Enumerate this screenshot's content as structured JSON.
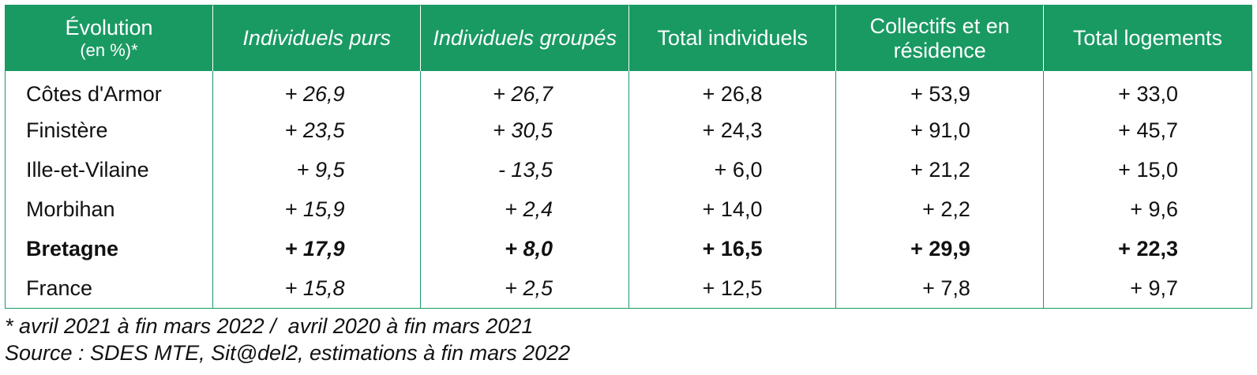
{
  "colors": {
    "header_background": "#1a9a63",
    "header_text": "#ffffff",
    "grid_lines": "#1a9a63"
  },
  "chart_data": {
    "type": "table",
    "columns": [
      {
        "label": "Évolution",
        "sublabel": "(en %)*"
      },
      {
        "label": "Individuels purs"
      },
      {
        "label": "Individuels groupés"
      },
      {
        "label": "Total individuels"
      },
      {
        "label": "Collectifs et en résidence"
      },
      {
        "label": "Total logements"
      }
    ],
    "rows": [
      {
        "label": "Côtes d'Armor",
        "values": [
          "+ 26,9",
          "+ 26,7",
          "+ 26,8",
          "+ 53,9",
          "+ 33,0"
        ]
      },
      {
        "label": "Finistère",
        "values": [
          "+ 23,5",
          "+ 30,5",
          "+ 24,3",
          "+ 91,0",
          "+ 45,7"
        ]
      },
      {
        "label": "Ille-et-Vilaine",
        "values": [
          "+ 9,5",
          "- 13,5",
          "+ 6,0",
          "+ 21,2",
          "+ 15,0"
        ]
      },
      {
        "label": "Morbihan",
        "values": [
          "+ 15,9",
          "+ 2,4",
          "+ 14,0",
          "+ 2,2",
          "+ 9,6"
        ]
      },
      {
        "label": "Bretagne",
        "values": [
          "+ 17,9",
          "+ 8,0",
          "+ 16,5",
          "+ 29,9",
          "+ 22,3"
        ]
      },
      {
        "label": "France",
        "values": [
          "+ 15,8",
          "+ 2,5",
          "+ 12,5",
          "+ 7,8",
          "+ 9,7"
        ]
      }
    ]
  },
  "notes": {
    "period": "* avril 2021 à fin mars 2022 /  avril 2020 à fin mars 2021",
    "source": "Source : SDES MTE, Sit@del2, estimations à fin mars 2022"
  }
}
